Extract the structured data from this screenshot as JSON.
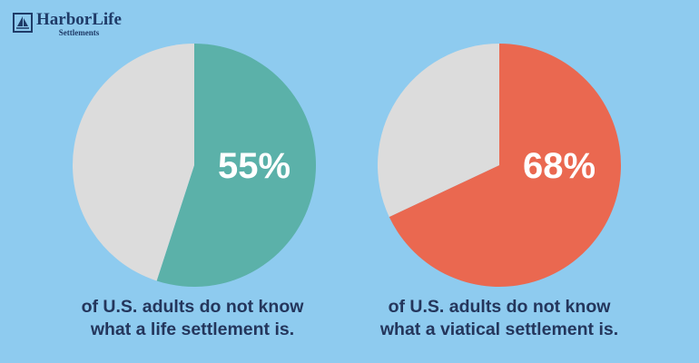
{
  "brand": {
    "name": "HarborLife",
    "tagline": "Settlements"
  },
  "chart_data": [
    {
      "type": "pie",
      "slices": [
        {
          "label": "55%",
          "value": 55,
          "color": "#5bb1a9"
        },
        {
          "value": 45,
          "color": "#dcdcdc"
        }
      ],
      "caption": [
        "of U.S. adults do not know",
        "what a life settlement is."
      ]
    },
    {
      "type": "pie",
      "slices": [
        {
          "label": "68%",
          "value": 68,
          "color": "#ea6850"
        },
        {
          "value": 32,
          "color": "#dcdcdc"
        }
      ],
      "caption": [
        "of U.S. adults do not know",
        "what a viatical settlement is."
      ]
    }
  ]
}
